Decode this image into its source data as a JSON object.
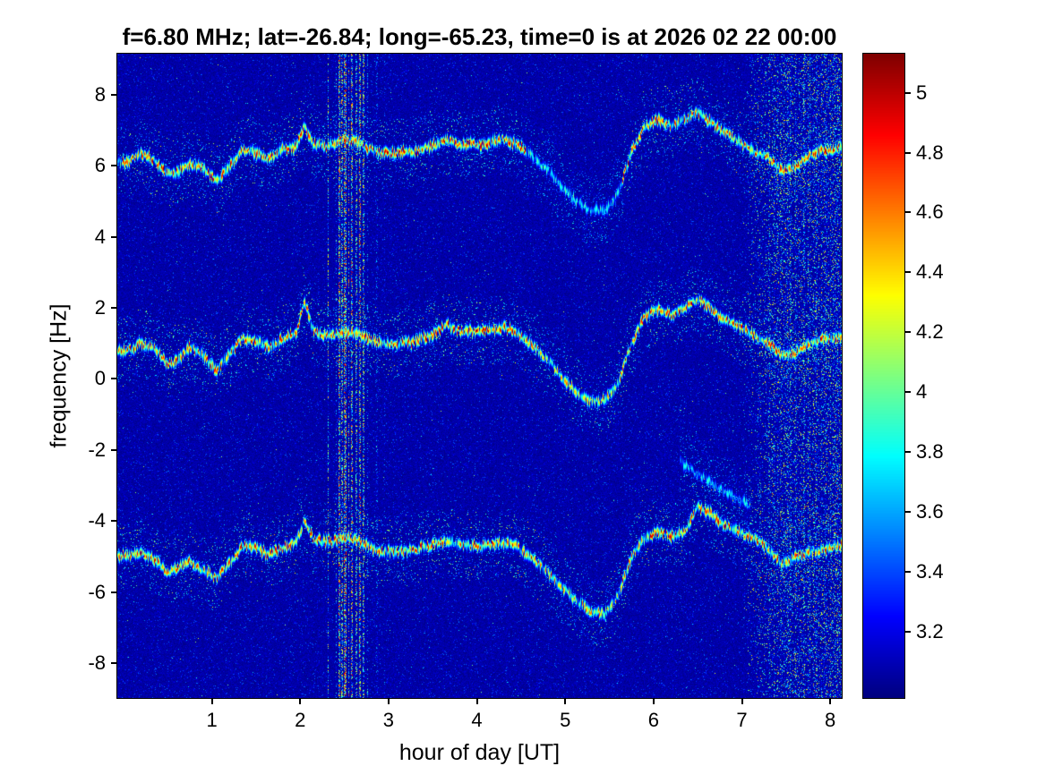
{
  "chart_data": {
    "type": "heatmap",
    "title": "f=6.80 MHz;  lat=-26.84; long=-65.23, time=0 is at 2026 02 22 00:00",
    "xlabel": "hour of day [UT]",
    "ylabel": "frequency [Hz]",
    "x_range": [
      -0.07,
      8.13
    ],
    "y_range": [
      -8.98,
      9.15
    ],
    "x_ticks": [
      1,
      2,
      3,
      4,
      5,
      6,
      7,
      8
    ],
    "y_ticks": [
      8,
      6,
      4,
      2,
      0,
      -2,
      -4,
      -6,
      -8
    ],
    "colorbar": {
      "colormap": "jet",
      "clim": [
        2.98,
        5.13
      ],
      "ticks": [
        5,
        4.8,
        4.6,
        4.4,
        4.2,
        4,
        3.8,
        3.6,
        3.4,
        3.2
      ]
    },
    "background_level": 3.05,
    "traces": [
      {
        "name": "upper-doppler-trace",
        "intensity": 1.0,
        "scatter": 0.055,
        "fade": [
          [
            4.55,
            5.65,
            0.5
          ]
        ],
        "points": [
          [
            0.05,
            6.1
          ],
          [
            0.2,
            6.35
          ],
          [
            0.35,
            6.15
          ],
          [
            0.5,
            5.75
          ],
          [
            0.6,
            5.8
          ],
          [
            0.75,
            6.05
          ],
          [
            0.9,
            5.95
          ],
          [
            1.05,
            5.6
          ],
          [
            1.2,
            5.95
          ],
          [
            1.35,
            6.45
          ],
          [
            1.5,
            6.35
          ],
          [
            1.65,
            6.2
          ],
          [
            1.8,
            6.45
          ],
          [
            1.95,
            6.55
          ],
          [
            2.05,
            7.1
          ],
          [
            2.15,
            6.6
          ],
          [
            2.3,
            6.55
          ],
          [
            2.45,
            6.7
          ],
          [
            2.6,
            6.7
          ],
          [
            2.75,
            6.5
          ],
          [
            2.9,
            6.35
          ],
          [
            3.1,
            6.35
          ],
          [
            3.3,
            6.4
          ],
          [
            3.5,
            6.55
          ],
          [
            3.65,
            6.7
          ],
          [
            3.8,
            6.6
          ],
          [
            4.0,
            6.6
          ],
          [
            4.15,
            6.65
          ],
          [
            4.3,
            6.75
          ],
          [
            4.45,
            6.6
          ],
          [
            4.6,
            6.3
          ],
          [
            4.8,
            5.9
          ],
          [
            5.0,
            5.3
          ],
          [
            5.15,
            4.95
          ],
          [
            5.3,
            4.75
          ],
          [
            5.45,
            4.75
          ],
          [
            5.6,
            5.2
          ],
          [
            5.75,
            6.4
          ],
          [
            5.9,
            7.1
          ],
          [
            6.05,
            7.3
          ],
          [
            6.2,
            7.1
          ],
          [
            6.35,
            7.3
          ],
          [
            6.5,
            7.5
          ],
          [
            6.65,
            7.2
          ],
          [
            6.8,
            6.95
          ],
          [
            7.0,
            6.6
          ],
          [
            7.15,
            6.4
          ],
          [
            7.3,
            6.2
          ],
          [
            7.45,
            5.85
          ],
          [
            7.6,
            5.95
          ],
          [
            7.75,
            6.25
          ],
          [
            7.9,
            6.4
          ],
          [
            8.13,
            6.5
          ]
        ]
      },
      {
        "name": "center-doppler-trace",
        "intensity": 1.0,
        "scatter": 0.055,
        "fade": [
          [
            4.7,
            5.6,
            0.8
          ]
        ],
        "points": [
          [
            0.05,
            0.8
          ],
          [
            0.2,
            1.0
          ],
          [
            0.35,
            0.85
          ],
          [
            0.5,
            0.4
          ],
          [
            0.6,
            0.5
          ],
          [
            0.75,
            0.9
          ],
          [
            0.9,
            0.65
          ],
          [
            1.05,
            0.25
          ],
          [
            1.2,
            0.7
          ],
          [
            1.35,
            1.15
          ],
          [
            1.5,
            1.05
          ],
          [
            1.65,
            0.9
          ],
          [
            1.8,
            1.1
          ],
          [
            1.95,
            1.25
          ],
          [
            2.05,
            2.2
          ],
          [
            2.15,
            1.35
          ],
          [
            2.3,
            1.2
          ],
          [
            2.45,
            1.3
          ],
          [
            2.6,
            1.3
          ],
          [
            2.75,
            1.15
          ],
          [
            2.9,
            1.0
          ],
          [
            3.1,
            1.0
          ],
          [
            3.3,
            1.05
          ],
          [
            3.5,
            1.25
          ],
          [
            3.65,
            1.5
          ],
          [
            3.8,
            1.35
          ],
          [
            4.0,
            1.3
          ],
          [
            4.15,
            1.35
          ],
          [
            4.3,
            1.45
          ],
          [
            4.45,
            1.3
          ],
          [
            4.6,
            1.0
          ],
          [
            4.8,
            0.55
          ],
          [
            5.0,
            -0.05
          ],
          [
            5.15,
            -0.4
          ],
          [
            5.3,
            -0.65
          ],
          [
            5.45,
            -0.6
          ],
          [
            5.6,
            -0.1
          ],
          [
            5.75,
            1.0
          ],
          [
            5.9,
            1.75
          ],
          [
            6.05,
            1.95
          ],
          [
            6.2,
            1.8
          ],
          [
            6.35,
            2.0
          ],
          [
            6.5,
            2.25
          ],
          [
            6.65,
            1.95
          ],
          [
            6.8,
            1.7
          ],
          [
            7.0,
            1.4
          ],
          [
            7.15,
            1.2
          ],
          [
            7.3,
            1.0
          ],
          [
            7.45,
            0.65
          ],
          [
            7.6,
            0.75
          ],
          [
            7.75,
            1.0
          ],
          [
            7.9,
            1.1
          ],
          [
            8.13,
            1.15
          ]
        ]
      },
      {
        "name": "lower-doppler-trace",
        "intensity": 1.0,
        "scatter": 0.055,
        "fade": [
          [
            4.7,
            5.6,
            0.85
          ]
        ],
        "points": [
          [
            0.05,
            -5.0
          ],
          [
            0.2,
            -4.85
          ],
          [
            0.35,
            -5.1
          ],
          [
            0.5,
            -5.45
          ],
          [
            0.6,
            -5.35
          ],
          [
            0.75,
            -5.1
          ],
          [
            0.9,
            -5.4
          ],
          [
            1.05,
            -5.6
          ],
          [
            1.2,
            -5.2
          ],
          [
            1.35,
            -4.7
          ],
          [
            1.5,
            -4.75
          ],
          [
            1.65,
            -4.95
          ],
          [
            1.8,
            -4.75
          ],
          [
            1.95,
            -4.6
          ],
          [
            2.05,
            -4.0
          ],
          [
            2.15,
            -4.5
          ],
          [
            2.3,
            -4.6
          ],
          [
            2.45,
            -4.5
          ],
          [
            2.6,
            -4.5
          ],
          [
            2.75,
            -4.65
          ],
          [
            2.9,
            -4.85
          ],
          [
            3.1,
            -4.85
          ],
          [
            3.3,
            -4.8
          ],
          [
            3.5,
            -4.65
          ],
          [
            3.65,
            -4.55
          ],
          [
            3.8,
            -4.65
          ],
          [
            4.0,
            -4.7
          ],
          [
            4.15,
            -4.65
          ],
          [
            4.3,
            -4.6
          ],
          [
            4.45,
            -4.7
          ],
          [
            4.6,
            -5.0
          ],
          [
            4.8,
            -5.45
          ],
          [
            5.0,
            -5.95
          ],
          [
            5.15,
            -6.3
          ],
          [
            5.3,
            -6.55
          ],
          [
            5.45,
            -6.6
          ],
          [
            5.6,
            -6.1
          ],
          [
            5.75,
            -5.0
          ],
          [
            5.9,
            -4.5
          ],
          [
            6.05,
            -4.3
          ],
          [
            6.2,
            -4.45
          ],
          [
            6.35,
            -4.3
          ],
          [
            6.5,
            -3.6
          ],
          [
            6.65,
            -3.8
          ],
          [
            6.8,
            -4.1
          ],
          [
            7.0,
            -4.35
          ],
          [
            7.15,
            -4.5
          ],
          [
            7.3,
            -4.8
          ],
          [
            7.45,
            -5.2
          ],
          [
            7.6,
            -5.05
          ],
          [
            7.75,
            -4.9
          ],
          [
            7.9,
            -4.8
          ],
          [
            8.13,
            -4.7
          ]
        ]
      },
      {
        "name": "faint-diagonal-branch",
        "intensity": 0.45,
        "scatter": 0.05,
        "fade": [],
        "points": [
          [
            6.3,
            -2.3
          ],
          [
            6.5,
            -2.7
          ],
          [
            6.7,
            -3.0
          ],
          [
            6.9,
            -3.3
          ],
          [
            7.1,
            -3.6
          ]
        ]
      }
    ],
    "interference_stripes": [
      {
        "x": 2.315,
        "w": 0.008,
        "a": 0.75
      },
      {
        "x": 2.405,
        "w": 0.006,
        "a": 0.5
      },
      {
        "x": 2.44,
        "w": 0.01,
        "a": 0.95
      },
      {
        "x": 2.475,
        "w": 0.008,
        "a": 0.8
      },
      {
        "x": 2.51,
        "w": 0.012,
        "a": 1.0
      },
      {
        "x": 2.55,
        "w": 0.008,
        "a": 0.85
      },
      {
        "x": 2.59,
        "w": 0.01,
        "a": 0.9
      },
      {
        "x": 2.635,
        "w": 0.008,
        "a": 0.7
      },
      {
        "x": 2.675,
        "w": 0.012,
        "a": 0.95
      },
      {
        "x": 2.72,
        "w": 0.008,
        "a": 0.75
      },
      {
        "x": 2.76,
        "w": 0.006,
        "a": 0.5
      },
      {
        "x": 2.87,
        "w": 0.006,
        "a": 0.35
      },
      {
        "x": 2.96,
        "w": 0.005,
        "a": 0.3
      },
      {
        "x": 4.6,
        "w": 0.008,
        "a": 0.12
      }
    ],
    "noise_band": {
      "x_start": 7.0,
      "x_end": 8.13,
      "peak_density": 0.45
    }
  }
}
